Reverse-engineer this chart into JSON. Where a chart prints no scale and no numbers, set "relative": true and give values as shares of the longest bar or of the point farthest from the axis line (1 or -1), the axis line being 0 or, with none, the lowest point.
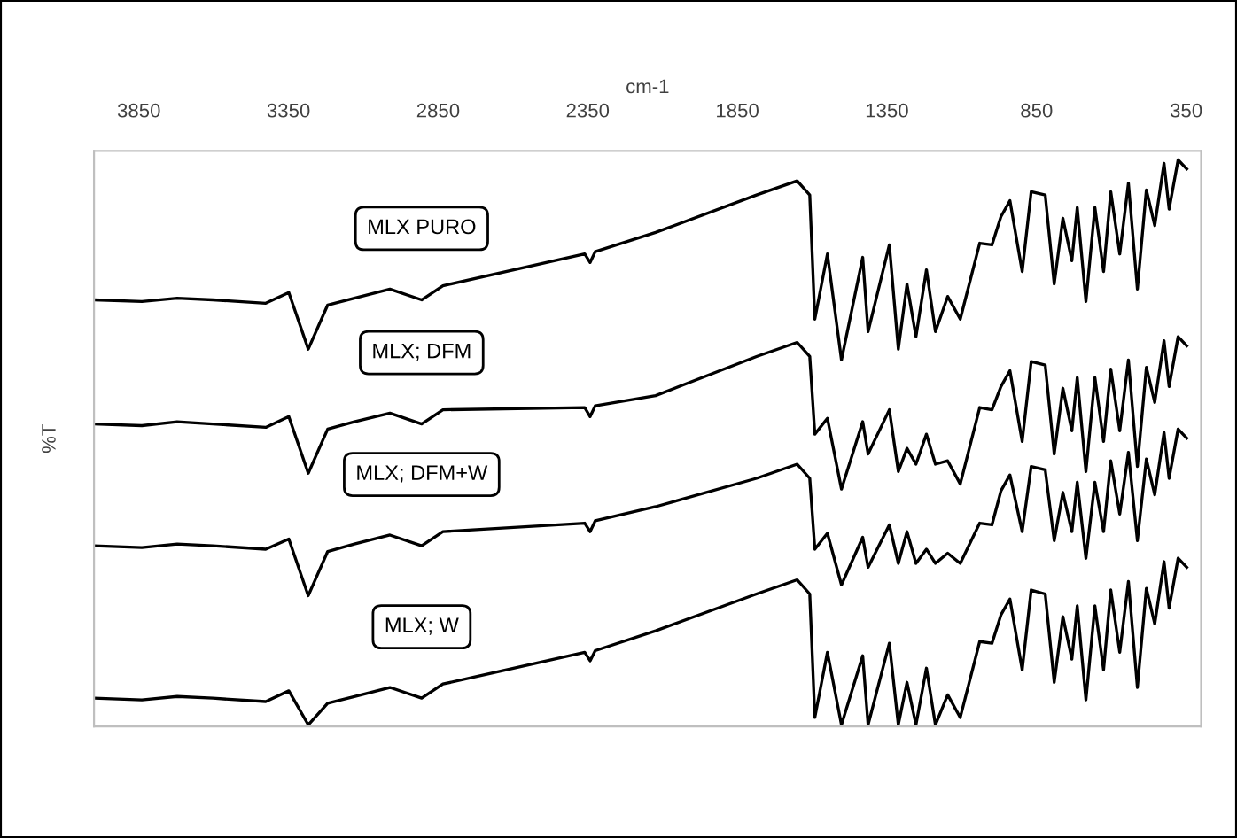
{
  "chart_data": {
    "type": "line",
    "relative": true,
    "xlabel": "cm-1",
    "ylabel": "%T",
    "x": [
      4000,
      3840,
      3722,
      3603,
      3426,
      3349,
      3284,
      3219,
      3130,
      3011,
      2905,
      2834,
      2360,
      2342,
      2325,
      2123,
      1786,
      1650,
      1608,
      1591,
      1549,
      1502,
      1431,
      1413,
      1342,
      1312,
      1283,
      1253,
      1218,
      1188,
      1147,
      1105,
      1040,
      999,
      969,
      939,
      898,
      868,
      821,
      791,
      762,
      732,
      714,
      685,
      655,
      626,
      602,
      572,
      543,
      513,
      483,
      455,
      424,
      407,
      377,
      348
    ],
    "xlim": [
      4000,
      300
    ],
    "xticks": [
      3850,
      3350,
      2850,
      2350,
      1850,
      1350,
      850,
      350
    ],
    "grid": false,
    "legend": false,
    "series": [
      {
        "name": "MLX PURO",
        "color": "#000000",
        "values": [
          0.753,
          0.75,
          0.756,
          0.753,
          0.747,
          0.766,
          0.666,
          0.744,
          0.756,
          0.772,
          0.753,
          0.778,
          0.834,
          0.819,
          0.838,
          0.872,
          0.938,
          0.963,
          0.938,
          0.719,
          0.834,
          0.647,
          0.828,
          0.697,
          0.85,
          0.666,
          0.781,
          0.688,
          0.806,
          0.697,
          0.759,
          0.719,
          0.853,
          0.85,
          0.9,
          0.928,
          0.803,
          0.944,
          0.938,
          0.781,
          0.897,
          0.822,
          0.916,
          0.75,
          0.916,
          0.803,
          0.944,
          0.834,
          0.959,
          0.772,
          0.947,
          0.884,
          0.994,
          0.913,
          1.0,
          0.984
        ]
      },
      {
        "name": "MLX; DFM",
        "color": "#000000",
        "values": [
          0.534,
          0.531,
          0.538,
          0.534,
          0.528,
          0.547,
          0.447,
          0.525,
          0.538,
          0.553,
          0.534,
          0.559,
          0.563,
          0.547,
          0.566,
          0.584,
          0.653,
          0.678,
          0.653,
          0.516,
          0.544,
          0.419,
          0.538,
          0.481,
          0.559,
          0.45,
          0.491,
          0.463,
          0.516,
          0.463,
          0.469,
          0.428,
          0.563,
          0.559,
          0.6,
          0.628,
          0.503,
          0.644,
          0.638,
          0.481,
          0.597,
          0.522,
          0.616,
          0.45,
          0.616,
          0.503,
          0.631,
          0.522,
          0.647,
          0.459,
          0.634,
          0.572,
          0.681,
          0.6,
          0.688,
          0.672
        ]
      },
      {
        "name": "MLX; DFM+W",
        "color": "#000000",
        "values": [
          0.319,
          0.316,
          0.322,
          0.319,
          0.313,
          0.331,
          0.231,
          0.309,
          0.322,
          0.338,
          0.319,
          0.344,
          0.359,
          0.344,
          0.363,
          0.388,
          0.438,
          0.463,
          0.438,
          0.313,
          0.341,
          0.25,
          0.334,
          0.281,
          0.356,
          0.288,
          0.344,
          0.288,
          0.313,
          0.288,
          0.306,
          0.288,
          0.359,
          0.356,
          0.416,
          0.444,
          0.344,
          0.459,
          0.453,
          0.328,
          0.413,
          0.344,
          0.431,
          0.297,
          0.431,
          0.344,
          0.469,
          0.375,
          0.484,
          0.328,
          0.472,
          0.409,
          0.519,
          0.438,
          0.525,
          0.509
        ]
      },
      {
        "name": "MLX; W",
        "color": "#000000",
        "values": [
          0.05,
          0.047,
          0.053,
          0.05,
          0.044,
          0.063,
          0.003,
          0.041,
          0.053,
          0.069,
          0.05,
          0.075,
          0.131,
          0.116,
          0.134,
          0.169,
          0.234,
          0.259,
          0.234,
          0.016,
          0.131,
          0.003,
          0.125,
          0.003,
          0.147,
          0.003,
          0.078,
          0.003,
          0.103,
          0.003,
          0.056,
          0.016,
          0.15,
          0.147,
          0.197,
          0.225,
          0.1,
          0.241,
          0.234,
          0.078,
          0.194,
          0.119,
          0.213,
          0.047,
          0.213,
          0.1,
          0.241,
          0.131,
          0.256,
          0.069,
          0.244,
          0.181,
          0.291,
          0.209,
          0.297,
          0.281
        ]
      }
    ]
  }
}
